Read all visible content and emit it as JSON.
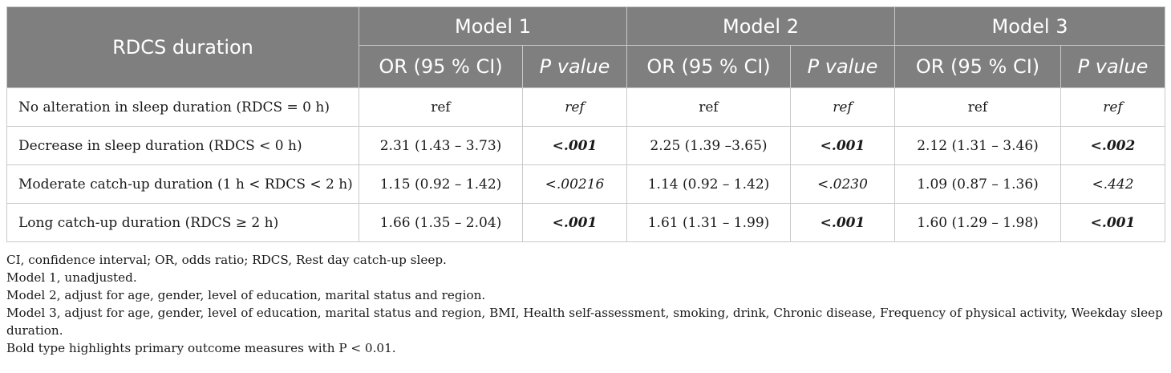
{
  "table": {
    "row_header": "RDCS duration",
    "models": [
      "Model 1",
      "Model 2",
      "Model 3"
    ],
    "sub_or": "OR (95 % CI)",
    "sub_p": "P value",
    "rows": [
      {
        "label": "No alteration in sleep duration (RDCS = 0 h)",
        "cells": [
          "ref",
          "ref",
          "ref",
          "ref",
          "ref",
          "ref"
        ],
        "p_bold": [
          false,
          false,
          false
        ]
      },
      {
        "label": "Decrease in sleep duration (RDCS < 0 h)",
        "cells": [
          "2.31 (1.43 – 3.73)",
          "<.001",
          "2.25 (1.39 –3.65)",
          "<.001",
          "2.12 (1.31 – 3.46)",
          "<.002"
        ],
        "p_bold": [
          true,
          true,
          true
        ]
      },
      {
        "label": "Moderate catch-up duration (1 h < RDCS < 2 h)",
        "cells": [
          "1.15 (0.92 – 1.42)",
          "<.00216",
          "1.14 (0.92 – 1.42)",
          "<.0230",
          "1.09 (0.87 – 1.36)",
          "<.442"
        ],
        "p_bold": [
          false,
          false,
          false
        ]
      },
      {
        "label": "Long catch-up duration (RDCS ≥ 2 h)",
        "cells": [
          "1.66 (1.35 – 2.04)",
          "<.001",
          "1.61 (1.31 – 1.99)",
          "<.001",
          "1.60 (1.29 – 1.98)",
          "<.001"
        ],
        "p_bold": [
          true,
          true,
          true
        ]
      }
    ]
  },
  "notes": [
    "CI, confidence interval; OR, odds ratio; RDCS, Rest day catch-up sleep.",
    "Model 1, unadjusted.",
    "Model 2, adjust for age, gender, level of education, marital status and region.",
    "Model 3, adjust for age, gender, level of education, marital status and region, BMI, Health self-assessment, smoking, drink, Chronic disease, Frequency of physical activity, Weekday sleep duration.",
    "Bold type highlights primary outcome measures with P < 0.01."
  ],
  "colors": {
    "header_bg": "#7f7f7f",
    "header_text": "#ffffff",
    "grid": "#c9c9c9"
  }
}
